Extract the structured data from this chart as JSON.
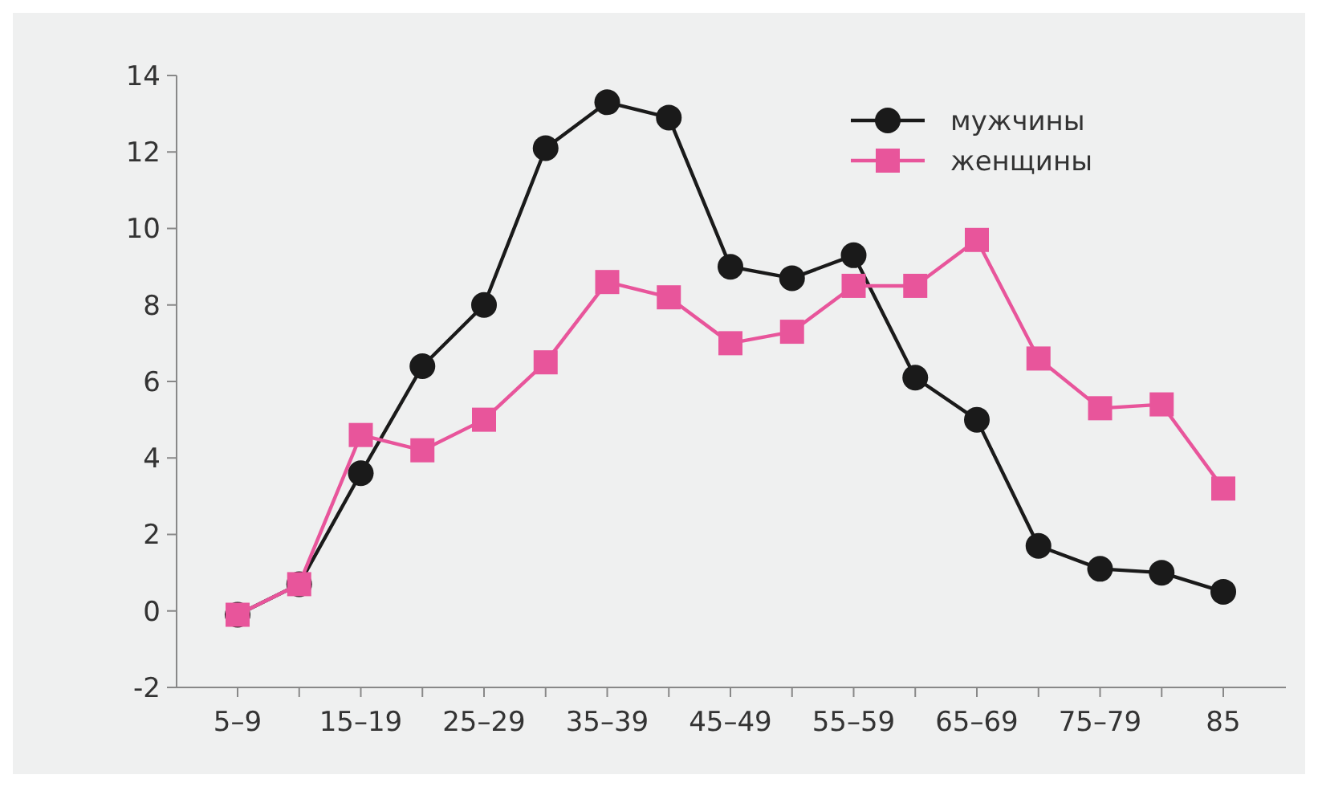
{
  "chart_data": {
    "type": "line",
    "categories": [
      "5–9",
      null,
      "15–19",
      null,
      "25–29",
      null,
      "35–39",
      null,
      "45–49",
      null,
      "55–59",
      null,
      "65–69",
      null,
      "75–79",
      null,
      "85"
    ],
    "series": [
      {
        "name": "мужчины",
        "color": "#1a1a1a",
        "marker": "circle",
        "values": [
          -0.1,
          0.7,
          3.6,
          6.4,
          8.0,
          12.1,
          13.3,
          12.9,
          9.0,
          8.7,
          9.3,
          6.1,
          5.0,
          1.7,
          1.1,
          1.0,
          0.5
        ]
      },
      {
        "name": "женщины",
        "color": "#e8559b",
        "marker": "square",
        "values": [
          -0.1,
          0.7,
          4.6,
          4.2,
          5.0,
          6.5,
          8.6,
          8.2,
          7.0,
          7.3,
          8.5,
          8.5,
          9.7,
          6.6,
          5.3,
          5.4,
          3.2
        ]
      }
    ],
    "ylim": [
      -2,
      14
    ],
    "yticks": [
      -2,
      0,
      2,
      4,
      6,
      8,
      10,
      12,
      14
    ],
    "grid": false,
    "legend": "top right",
    "line_style": "solid"
  }
}
